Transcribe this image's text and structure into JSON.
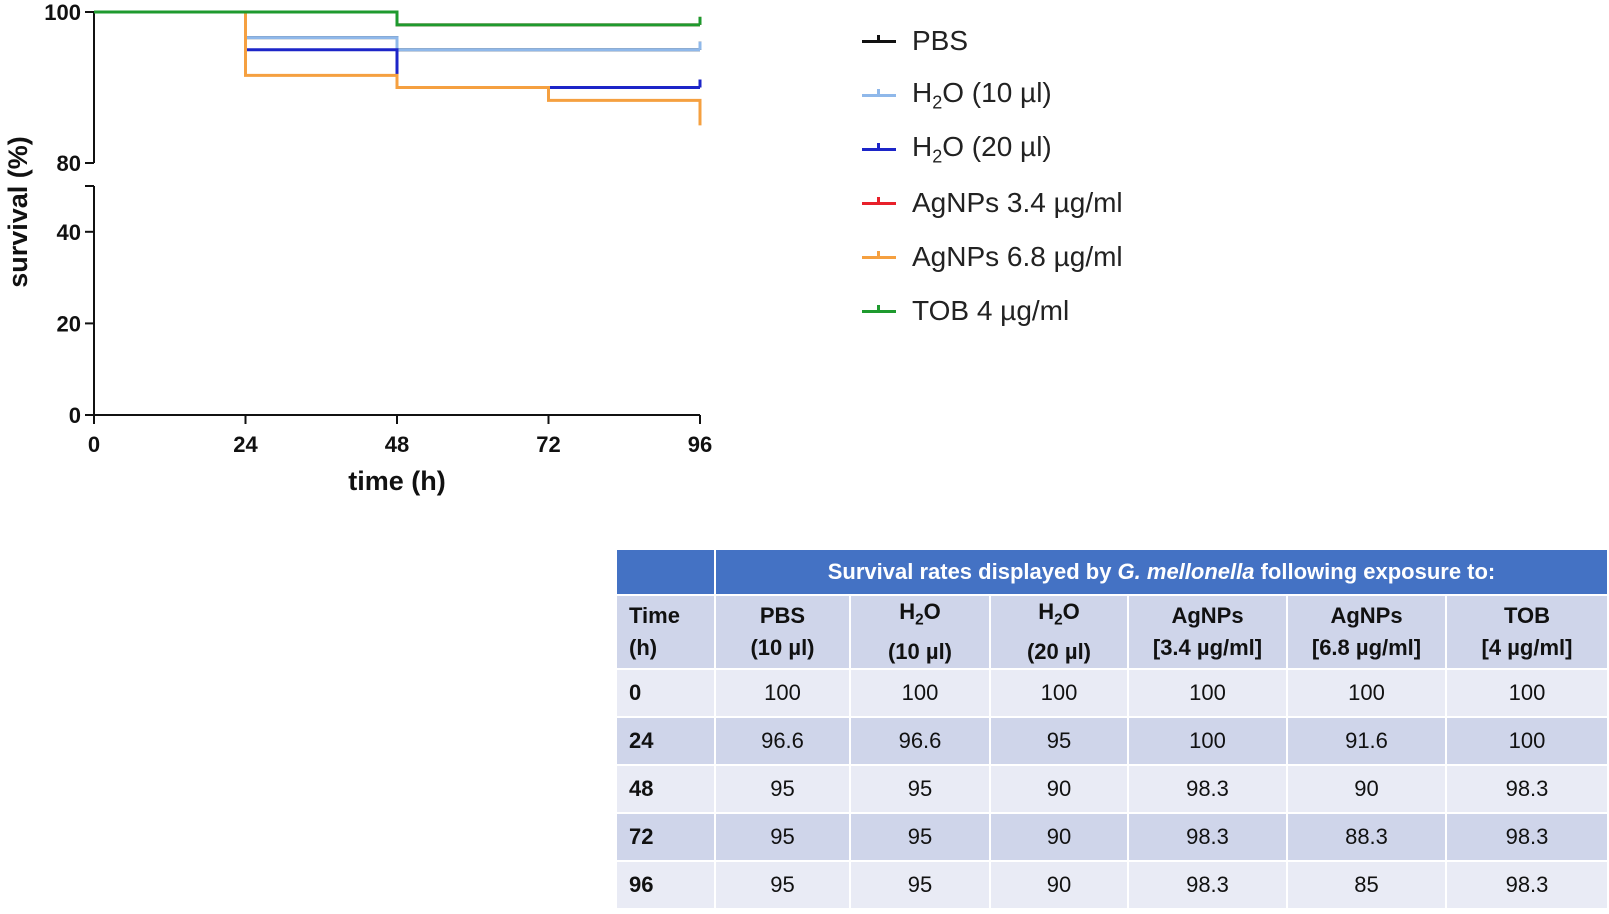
{
  "chart_data": {
    "type": "line",
    "subtype": "kaplan-meier-step",
    "xlabel": "time (h)",
    "ylabel": "survival (%)",
    "x": [
      0,
      24,
      48,
      72,
      96
    ],
    "xticks": [
      0,
      24,
      48,
      72,
      96
    ],
    "xlim": [
      0,
      96
    ],
    "ylim": [
      0,
      100
    ],
    "yaxis_break": [
      50,
      80
    ],
    "yticks_lower": [
      0,
      20,
      40
    ],
    "yticks_upper": [
      80,
      100
    ],
    "legend_position": "right",
    "series": [
      {
        "name": "PBS",
        "color": "#111111",
        "values": [
          100,
          96.6,
          95,
          95,
          95
        ]
      },
      {
        "name": "H2O (10 µl)",
        "color": "#8fb8ea",
        "values": [
          100,
          96.6,
          95,
          95,
          95
        ]
      },
      {
        "name": "H2O (20 µl)",
        "color": "#1c25c8",
        "values": [
          100,
          95,
          90,
          90,
          90
        ]
      },
      {
        "name": "AgNPs 3.4 µg/ml",
        "color": "#e8202a",
        "values": [
          100,
          100,
          98.3,
          98.3,
          98.3
        ]
      },
      {
        "name": "AgNPs 6.8 µg/ml",
        "color": "#f5a040",
        "values": [
          100,
          91.6,
          90,
          88.3,
          85
        ]
      },
      {
        "name": "TOB 4 µg/ml",
        "color": "#1e9a2e",
        "values": [
          100,
          100,
          98.3,
          98.3,
          98.3
        ]
      }
    ]
  },
  "legend": [
    {
      "name": "legend-pbs",
      "pre": "PBS",
      "sub": "",
      "post": "",
      "color": "#111111"
    },
    {
      "name": "legend-h2o-10",
      "pre": "H",
      "sub": "2",
      "post": "O (10 µl)",
      "color": "#8fb8ea"
    },
    {
      "name": "legend-h2o-20",
      "pre": "H",
      "sub": "2",
      "post": "O (20 µl)",
      "color": "#1c25c8"
    },
    {
      "name": "legend-agnps-34",
      "pre": "AgNPs 3.4 µg/ml",
      "sub": "",
      "post": "",
      "color": "#e8202a"
    },
    {
      "name": "legend-agnps-68",
      "pre": "AgNPs 6.8 µg/ml",
      "sub": "",
      "post": "",
      "color": "#f5a040"
    },
    {
      "name": "legend-tob",
      "pre": "TOB 4 µg/ml",
      "sub": "",
      "post": "",
      "color": "#1e9a2e"
    }
  ],
  "table": {
    "title_pre": "Survival rates displayed by ",
    "title_em": "G. mellonella",
    "title_post": " following exposure to:",
    "time_header_1": "Time",
    "time_header_2": "(h)",
    "columns": [
      {
        "l1_pre": "PBS",
        "l1_sub": "",
        "l1_post": "",
        "l2": "(10 µl)"
      },
      {
        "l1_pre": "H",
        "l1_sub": "2",
        "l1_post": "O",
        "l2": "(10 µl)"
      },
      {
        "l1_pre": "H",
        "l1_sub": "2",
        "l1_post": "O",
        "l2": "(20 µl)"
      },
      {
        "l1_pre": "AgNPs",
        "l1_sub": "",
        "l1_post": "",
        "l2": "[3.4 µg/ml]"
      },
      {
        "l1_pre": "AgNPs",
        "l1_sub": "",
        "l1_post": "",
        "l2": "[6.8 µg/ml]"
      },
      {
        "l1_pre": "TOB",
        "l1_sub": "",
        "l1_post": "",
        "l2": "[4 µg/ml]"
      }
    ],
    "rows": [
      {
        "time": "0",
        "values": [
          "100",
          "100",
          "100",
          "100",
          "100",
          "100"
        ]
      },
      {
        "time": "24",
        "values": [
          "96.6",
          "96.6",
          "95",
          "100",
          "91.6",
          "100"
        ]
      },
      {
        "time": "48",
        "values": [
          "95",
          "95",
          "90",
          "98.3",
          "90",
          "98.3"
        ]
      },
      {
        "time": "72",
        "values": [
          "95",
          "95",
          "90",
          "98.3",
          "88.3",
          "98.3"
        ]
      },
      {
        "time": "96",
        "values": [
          "95",
          "95",
          "90",
          "98.3",
          "85",
          "98.3"
        ]
      }
    ]
  }
}
